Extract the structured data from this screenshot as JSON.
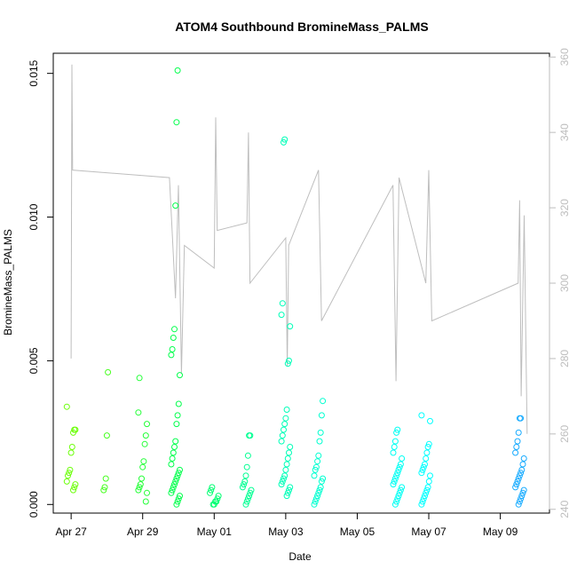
{
  "chart_data": {
    "type": "scatter",
    "title": "ATOM4 Southbound BromineMass_PALMS",
    "xlabel": "Date",
    "ylabel": "BromineMass_PALMS",
    "xlim": [
      "2018-04-26T12:00",
      "2018-05-10T09:00"
    ],
    "ylim": [
      -0.0003,
      0.0157
    ],
    "y2lim": [
      239,
      361
    ],
    "x_ticks": [
      {
        "label": "Apr 27",
        "value": "2018-04-27"
      },
      {
        "label": "Apr 29",
        "value": "2018-04-29"
      },
      {
        "label": "May 01",
        "value": "2018-05-01"
      },
      {
        "label": "May 03",
        "value": "2018-05-03"
      },
      {
        "label": "May 05",
        "value": "2018-05-05"
      },
      {
        "label": "May 07",
        "value": "2018-05-07"
      },
      {
        "label": "May 09",
        "value": "2018-05-09"
      }
    ],
    "y_ticks": [
      {
        "label": "0.000",
        "value": 0.0
      },
      {
        "label": "0.005",
        "value": 0.005
      },
      {
        "label": "0.010",
        "value": 0.01
      },
      {
        "label": "0.015",
        "value": 0.015
      }
    ],
    "y2_ticks": [
      {
        "label": "240",
        "value": 240
      },
      {
        "label": "260",
        "value": 260
      },
      {
        "label": "280",
        "value": 280
      },
      {
        "label": "300",
        "value": 300
      },
      {
        "label": "320",
        "value": 320
      },
      {
        "label": "340",
        "value": 340
      },
      {
        "label": "360",
        "value": 360
      }
    ],
    "grid": false,
    "legend": "none",
    "scatter_color_gradient": [
      "#7fff00",
      "#00ff4d",
      "#00ffc8",
      "#00ffff",
      "#1e90ff"
    ],
    "line_color": "#bebebe",
    "scatter_groups": [
      {
        "x": "2018-04-27T00:00",
        "y": [
          0.0034,
          0.0026,
          0.0026,
          0.0025,
          0.002,
          0.0018,
          0.0012,
          0.0011,
          0.001,
          0.0008,
          0.0007,
          0.0006,
          0.0005
        ]
      },
      {
        "x": "2018-04-28T00:00",
        "y": [
          0.0046,
          0.0024,
          0.0009,
          0.0006,
          0.0005
        ]
      },
      {
        "x": "2018-04-29T00:00",
        "y": [
          0.0044,
          0.0032,
          0.0028,
          0.0024,
          0.0021,
          0.0015,
          0.0013,
          0.0009,
          0.0007,
          0.0006,
          0.0005,
          0.0004,
          0.0001
        ]
      },
      {
        "x": "2018-04-29T22:00",
        "y": [
          0.0151,
          0.0133,
          0.0104,
          0.0061,
          0.0058,
          0.0054,
          0.0052,
          0.0045,
          0.0035,
          0.0031,
          0.0028,
          0.0022,
          0.002,
          0.0018,
          0.0016,
          0.0014,
          0.0012,
          0.0011,
          0.001,
          0.0009,
          0.0008,
          0.0007,
          0.0006,
          0.0005,
          0.0004,
          0.0003,
          0.0002,
          0.0001,
          0.0
        ]
      },
      {
        "x": "2018-05-01T00:00",
        "y": [
          0.0006,
          0.0005,
          0.0004,
          0.0003,
          0.0002,
          0.0001,
          0.0001,
          0.0,
          0.0
        ]
      },
      {
        "x": "2018-05-01T22:00",
        "y": [
          0.0024,
          0.0024,
          0.0017,
          0.0013,
          0.001,
          0.0008,
          0.0007,
          0.0006,
          0.0005,
          0.0004,
          0.0003,
          0.0002,
          0.0001,
          0.0
        ]
      },
      {
        "x": "2018-05-03T00:00",
        "y": [
          0.0127,
          0.0126,
          0.007,
          0.0066,
          0.0062,
          0.005,
          0.0049,
          0.0033,
          0.003,
          0.0028,
          0.0026,
          0.0024,
          0.0022,
          0.002,
          0.0018,
          0.0016,
          0.0014,
          0.0012,
          0.001,
          0.0009,
          0.0008,
          0.0007,
          0.0006,
          0.0005,
          0.0004,
          0.0003
        ]
      },
      {
        "x": "2018-05-03T22:00",
        "y": [
          0.0036,
          0.0031,
          0.0025,
          0.0022,
          0.0017,
          0.0015,
          0.0013,
          0.0012,
          0.001,
          0.0009,
          0.0008,
          0.0006,
          0.0005,
          0.0004,
          0.0003,
          0.0002,
          0.0001,
          0.0
        ]
      },
      {
        "x": "2018-05-06T03:00",
        "y": [
          0.0026,
          0.0025,
          0.0022,
          0.002,
          0.0018,
          0.0016,
          0.0014,
          0.0013,
          0.0012,
          0.0011,
          0.001,
          0.0009,
          0.0008,
          0.0007,
          0.0006,
          0.0005,
          0.0004,
          0.0003,
          0.0002,
          0.0001,
          0.0
        ]
      },
      {
        "x": "2018-05-06T22:00",
        "y": [
          0.0031,
          0.0029,
          0.0021,
          0.002,
          0.0018,
          0.0016,
          0.0014,
          0.0013,
          0.0012,
          0.0011,
          0.001,
          0.0008,
          0.0006,
          0.0005,
          0.0004,
          0.0003,
          0.0002,
          0.0001,
          0.0
        ]
      },
      {
        "x": "2018-05-09T13:00",
        "y": [
          0.003,
          0.003,
          0.0025,
          0.0022,
          0.002,
          0.0018,
          0.0016,
          0.0014,
          0.0012,
          0.0011,
          0.001,
          0.0009,
          0.0008,
          0.0007,
          0.0006,
          0.0005,
          0.0004,
          0.0003,
          0.0002,
          0.0001,
          0.0
        ]
      }
    ],
    "line_series": [
      {
        "x": "2018-04-27T00:00",
        "y2": 280
      },
      {
        "x": "2018-04-27T00:30",
        "y2": 358
      },
      {
        "x": "2018-04-27T01:00",
        "y2": 330
      },
      {
        "x": "2018-04-29T18:00",
        "y2": 328
      },
      {
        "x": "2018-04-29T22:00",
        "y2": 296
      },
      {
        "x": "2018-04-30T00:00",
        "y2": 326
      },
      {
        "x": "2018-04-30T02:00",
        "y2": 276
      },
      {
        "x": "2018-04-30T04:00",
        "y2": 310
      },
      {
        "x": "2018-05-01T00:00",
        "y2": 304
      },
      {
        "x": "2018-05-01T01:00",
        "y2": 344
      },
      {
        "x": "2018-05-01T02:00",
        "y2": 314
      },
      {
        "x": "2018-05-01T22:00",
        "y2": 316
      },
      {
        "x": "2018-05-01T23:00",
        "y2": 340
      },
      {
        "x": "2018-05-02T00:00",
        "y2": 300
      },
      {
        "x": "2018-05-03T00:00",
        "y2": 312
      },
      {
        "x": "2018-05-03T01:00",
        "y2": 278
      },
      {
        "x": "2018-05-03T02:00",
        "y2": 310
      },
      {
        "x": "2018-05-03T22:00",
        "y2": 330
      },
      {
        "x": "2018-05-04T00:00",
        "y2": 290
      },
      {
        "x": "2018-05-06T00:00",
        "y2": 326
      },
      {
        "x": "2018-05-06T02:00",
        "y2": 274
      },
      {
        "x": "2018-05-06T04:00",
        "y2": 328
      },
      {
        "x": "2018-05-06T22:00",
        "y2": 300
      },
      {
        "x": "2018-05-07T00:00",
        "y2": 330
      },
      {
        "x": "2018-05-07T02:00",
        "y2": 290
      },
      {
        "x": "2018-05-09T12:00",
        "y2": 300
      },
      {
        "x": "2018-05-09T13:00",
        "y2": 322
      },
      {
        "x": "2018-05-09T14:00",
        "y2": 270
      },
      {
        "x": "2018-05-09T16:00",
        "y2": 318
      },
      {
        "x": "2018-05-09T18:00",
        "y2": 260
      }
    ]
  }
}
